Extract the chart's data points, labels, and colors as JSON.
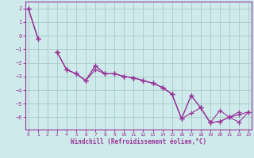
{
  "xlabel": "Windchill (Refroidissement éolien,°C)",
  "background_color": "#ceeaea",
  "grid_color": "#aecece",
  "line_color": "#993399",
  "x_values": [
    0,
    1,
    2,
    3,
    4,
    5,
    6,
    7,
    8,
    9,
    10,
    11,
    12,
    13,
    14,
    15,
    16,
    17,
    18,
    19,
    20,
    21,
    22,
    23
  ],
  "series1": [
    2.0,
    -0.2,
    null,
    -1.2,
    -2.5,
    -2.8,
    -3.3,
    -2.2,
    -2.8,
    -2.8,
    -3.0,
    -3.1,
    -3.3,
    -3.5,
    -3.8,
    -4.3,
    -6.1,
    -4.4,
    -5.3,
    -6.4,
    -5.5,
    -6.0,
    -6.35,
    -5.6
  ],
  "series2": [
    2.0,
    -0.2,
    null,
    -1.2,
    -2.5,
    -2.8,
    -3.3,
    -2.2,
    -2.8,
    -2.8,
    -3.0,
    -3.1,
    -3.3,
    -3.5,
    -3.8,
    -4.3,
    -6.1,
    -4.4,
    -5.3,
    -6.4,
    -6.3,
    -6.0,
    -5.8,
    -5.6
  ],
  "series3": [
    2.0,
    -0.2,
    null,
    -1.2,
    -2.5,
    -2.8,
    -3.3,
    -2.5,
    -2.8,
    -2.8,
    -3.0,
    -3.1,
    -3.3,
    -3.5,
    -3.8,
    -4.3,
    -6.1,
    -5.7,
    -5.3,
    -6.4,
    -6.3,
    -6.0,
    -5.6,
    null
  ],
  "ylim": [
    -6.9,
    2.5
  ],
  "xlim": [
    -0.3,
    23.3
  ],
  "yticks": [
    2,
    1,
    0,
    -1,
    -2,
    -3,
    -4,
    -5,
    -6
  ],
  "xticks": [
    0,
    1,
    2,
    3,
    4,
    5,
    6,
    7,
    8,
    9,
    10,
    11,
    12,
    13,
    14,
    15,
    16,
    17,
    18,
    19,
    20,
    21,
    22,
    23
  ]
}
